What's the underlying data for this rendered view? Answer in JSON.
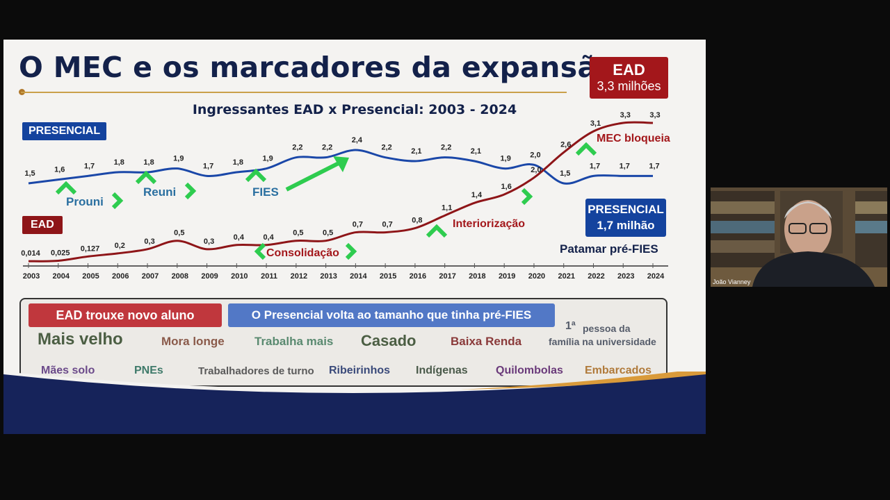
{
  "slide": {
    "title": "O MEC e os marcadores da expansão",
    "ead_badge": {
      "line1": "EAD",
      "line2": "3,3 milhões"
    },
    "chart_title": "Ingressantes EAD x Presencial: 2003 - 2024",
    "presencial_tag": "PRESENCIAL",
    "ead_tag": "EAD",
    "presencial_badge": {
      "line1": "PRESENCIAL",
      "line2": "1,7 milhão"
    },
    "patamar": "Patamar  pré-FIES",
    "annotations": {
      "prouni": "Prouni",
      "reuni": "Reuni",
      "fies": "FIES",
      "consolidacao": "Consolidação",
      "interiorizacao": "Interiorização",
      "mec_bloqueia": "MEC bloqueia"
    },
    "box": {
      "pill_ead": "EAD trouxe novo aluno",
      "pill_presencial": "O Presencial volta ao tamanho que tinha  pré-FIES",
      "row1": [
        "Mais velho",
        "Mora longe",
        "Trabalha mais",
        "Casado",
        "Baixa Renda"
      ],
      "first_person": {
        "sup": "1ª",
        "line1": "pessoa da",
        "line2": "família na universidade"
      },
      "row2": [
        "Mães solo",
        "PNEs",
        "Trabalhadores de turno",
        "Ribeirinhos",
        "Indígenas",
        "Quilombolas",
        "Embarcados"
      ]
    }
  },
  "chart_data": {
    "type": "line",
    "title": "Ingressantes EAD x Presencial: 2003 - 2024",
    "x": [
      "2003",
      "2004",
      "2005",
      "2006",
      "2007",
      "2008",
      "2009",
      "2010",
      "2011",
      "2012",
      "2013",
      "2014",
      "2015",
      "2016",
      "2017",
      "2018",
      "2019",
      "2020",
      "2021",
      "2022",
      "2023",
      "2024"
    ],
    "series": [
      {
        "name": "PRESENCIAL",
        "color": "#1a47a8",
        "values": [
          1.5,
          1.6,
          1.7,
          1.8,
          1.8,
          1.9,
          1.7,
          1.8,
          1.9,
          2.2,
          2.2,
          2.4,
          2.2,
          2.1,
          2.2,
          2.1,
          1.9,
          2.0,
          1.5,
          1.7,
          1.7,
          1.7
        ],
        "labels": [
          "1,5",
          "1,6",
          "1,7",
          "1,8",
          "1,8",
          "1,9",
          "1,7",
          "1,8",
          "1,9",
          "2,2",
          "2,2",
          "2,4",
          "2,2",
          "2,1",
          "2,2",
          "2,1",
          "1,9",
          "2,0",
          "1,5",
          "1,7",
          "1,7",
          "1,7"
        ]
      },
      {
        "name": "EAD",
        "color": "#8e1518",
        "values": [
          0.014,
          0.025,
          0.127,
          0.2,
          0.3,
          0.5,
          0.3,
          0.4,
          0.4,
          0.5,
          0.5,
          0.7,
          0.7,
          0.8,
          1.1,
          1.4,
          1.6,
          2.0,
          2.6,
          3.1,
          3.3,
          3.3
        ],
        "labels": [
          "0,014",
          "0,025",
          "0,127",
          "0,2",
          "0,3",
          "0,5",
          "0,3",
          "0,4",
          "0,4",
          "0,5",
          "0,5",
          "0,7",
          "0,7",
          "0,8",
          "1,1",
          "1,4",
          "1,6",
          "2,0",
          "2,6",
          "3,1",
          "3,3",
          "3,3"
        ]
      }
    ],
    "ylabel": "",
    "xlabel": ""
  },
  "webcam": {
    "name": "João Vianney"
  },
  "colors": {
    "presencial": "#1a47a8",
    "ead": "#8e1518",
    "arrow": "#2ecc4f",
    "annotation_teal": "#2a6fa0"
  }
}
